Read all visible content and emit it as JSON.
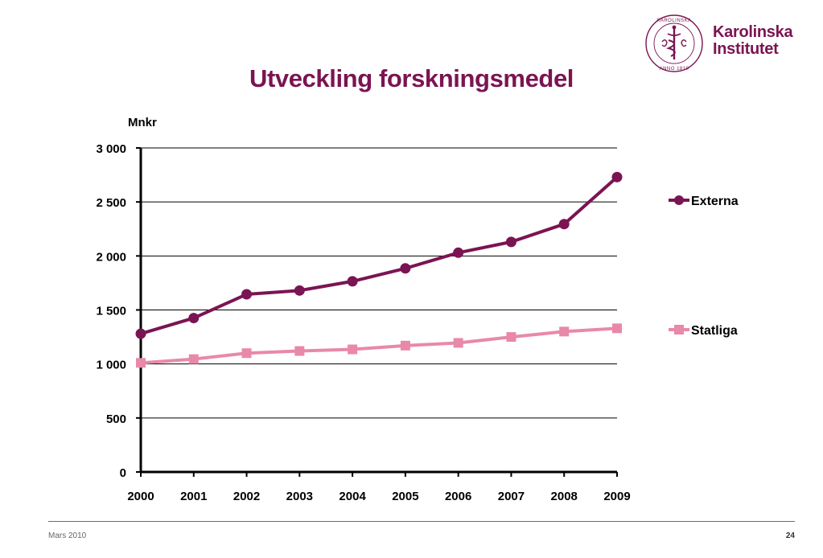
{
  "logo": {
    "line1": "Karolinska",
    "line2": "Institutet",
    "seal_text": "KAROLINSKA INSTITUTET · ANNO 1810"
  },
  "colors": {
    "brand": "#7b1452",
    "externa": "#7b1452",
    "statliga": "#e889aa",
    "axis": "#000000",
    "grid": "#000000"
  },
  "slide": {
    "title": "Utveckling forskningsmedel"
  },
  "chart_data": {
    "type": "line",
    "title": "Utveckling forskningsmedel",
    "ylabel": "Mnkr",
    "xlabel": "",
    "categories": [
      "2000",
      "2001",
      "2002",
      "2003",
      "2004",
      "2005",
      "2006",
      "2007",
      "2008",
      "2009"
    ],
    "ylim": [
      0,
      3000
    ],
    "yticks": [
      0,
      500,
      1000,
      1500,
      2000,
      2500,
      3000
    ],
    "ytick_labels": [
      "0",
      "500",
      "1 000",
      "1 500",
      "2 000",
      "2 500",
      "3 000"
    ],
    "grid": true,
    "legend_position": "right",
    "series": [
      {
        "name": "Externa",
        "marker": "circle",
        "values": [
          1280,
          1425,
          1645,
          1680,
          1765,
          1885,
          2030,
          2130,
          2295,
          2730
        ]
      },
      {
        "name": "Statliga",
        "marker": "square",
        "values": [
          1010,
          1045,
          1100,
          1120,
          1135,
          1170,
          1195,
          1250,
          1300,
          1330
        ]
      }
    ]
  },
  "footer": {
    "date": "Mars 2010",
    "page": "24"
  }
}
